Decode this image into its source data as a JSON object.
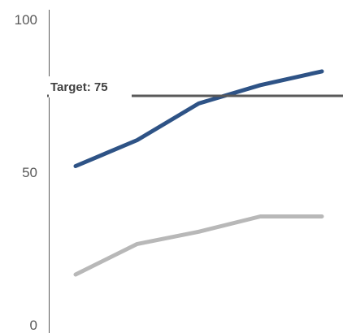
{
  "chart_data": {
    "type": "line",
    "title": "",
    "xlabel": "",
    "ylabel": "",
    "x": [
      1,
      2,
      3,
      4,
      5
    ],
    "ylim": [
      0,
      100
    ],
    "yticks": [
      0,
      50,
      100
    ],
    "grid": false,
    "legend": "none",
    "series": [
      {
        "values": [
          52,
          60.5,
          72.5,
          78.5,
          83
        ],
        "color": "#2e5386"
      },
      {
        "values": [
          16.5,
          26.5,
          30.5,
          35.5,
          35.5
        ],
        "color": "#b8b8b8"
      }
    ],
    "reference_line": {
      "value": 75,
      "label": "Target: 75",
      "color": "#595959"
    }
  }
}
